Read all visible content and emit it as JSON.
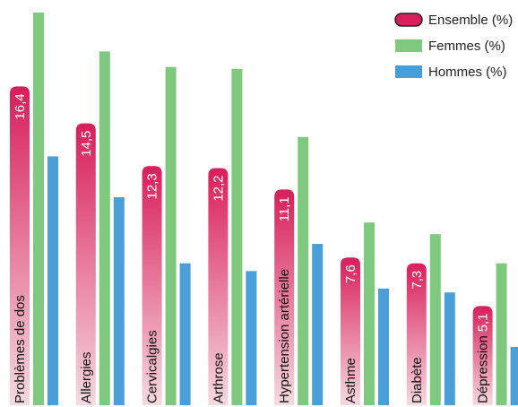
{
  "chart_data": {
    "type": "bar",
    "categories": [
      "Problèmes de dos",
      "Allergies",
      "Cervicalgies",
      "Arthrose",
      "Hypertension artérielle",
      "Asthme",
      "Diabète",
      "Dépression"
    ],
    "series": [
      {
        "name": "Ensemble (%)",
        "values": [
          16.4,
          14.5,
          12.3,
          12.2,
          11.1,
          7.6,
          7.3,
          5.1
        ],
        "labels": [
          "16,4",
          "14,5",
          "12,3",
          "12,2",
          "11,1",
          "7,6",
          "7,3",
          "5,1"
        ],
        "color": "#d81e5b"
      },
      {
        "name": "Femmes (%)",
        "values": [
          20.2,
          18.2,
          17.4,
          17.3,
          13.8,
          9.4,
          8.8,
          7.3
        ],
        "color": "#7fc97f"
      },
      {
        "name": "Hommes (%)",
        "values": [
          12.8,
          10.7,
          7.3,
          6.9,
          8.3,
          6.0,
          5.8,
          3.0
        ],
        "color": "#4a9fd8"
      }
    ],
    "ylim": [
      0,
      20.2
    ],
    "grid": false,
    "legend": "top-right"
  }
}
